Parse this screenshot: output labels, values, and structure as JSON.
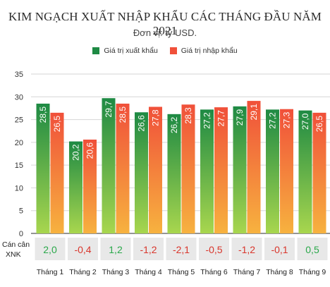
{
  "title": "KIM NGẠCH XUẤT NHẬP KHẨU CÁC THÁNG ĐẦU NĂM 2021",
  "subtitle": "Đơn vị: tỷ USD.",
  "balance_label_line1": "Cán cân",
  "balance_label_line2": "XNK",
  "colors": {
    "export_top": "#1e8a44",
    "export_bottom": "#a8d64e",
    "import_top": "#f0503a",
    "import_bottom": "#f7b23f",
    "balance_positive": "#2aa84a",
    "balance_negative": "#d9362c",
    "balance_bg": "#e8e8e8"
  },
  "chart_data": {
    "type": "bar",
    "categories": [
      "Tháng 1",
      "Tháng 2",
      "Tháng 3",
      "Tháng 4",
      "Tháng 5",
      "Tháng 6",
      "Tháng 7",
      "Tháng 8",
      "Tháng 9"
    ],
    "series": [
      {
        "name": "Giá trị xuất khẩu",
        "values": [
          28.5,
          20.2,
          29.7,
          26.6,
          26.2,
          27.2,
          27.9,
          27.2,
          27.0
        ],
        "labels": [
          "28,5",
          "20,2",
          "29,7",
          "26,6",
          "26,2",
          "27,2",
          "27,9",
          "27,2",
          "27,0"
        ]
      },
      {
        "name": "Giá trị nhập khẩu",
        "values": [
          26.5,
          20.6,
          28.5,
          27.8,
          28.3,
          27.7,
          29.1,
          27.3,
          26.5
        ],
        "labels": [
          "26,5",
          "20,6",
          "28,5",
          "27,8",
          "28,3",
          "27,7",
          "29,1",
          "27,3",
          "26,5"
        ]
      }
    ],
    "balance": {
      "values": [
        2.0,
        -0.4,
        1.2,
        -1.2,
        -2.1,
        -0.5,
        -1.2,
        -0.1,
        0.5
      ],
      "labels": [
        "2,0",
        "-0,4",
        "1,2",
        "-1,2",
        "-2,1",
        "-0,5",
        "-1,2",
        "-0,1",
        "0,5"
      ]
    },
    "yticks": [
      "0",
      "5",
      "10",
      "15",
      "20",
      "25",
      "30",
      "35"
    ],
    "ylim": [
      0,
      35
    ],
    "grid": true,
    "legend": "top-center"
  }
}
